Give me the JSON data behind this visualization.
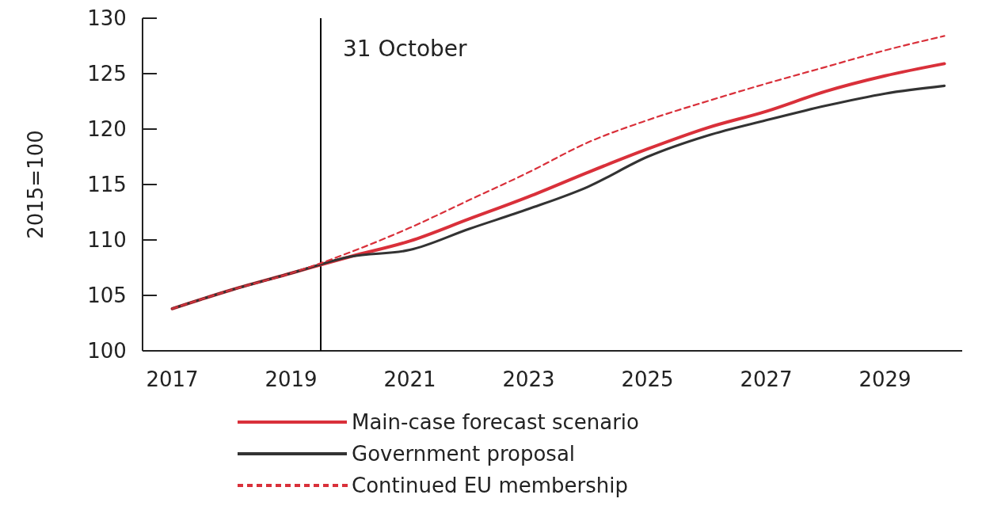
{
  "chart_data": {
    "type": "line",
    "ylabel": "2015=100",
    "x": [
      2017,
      2018,
      2019,
      2020,
      2021,
      2022,
      2023,
      2024,
      2025,
      2026,
      2027,
      2028,
      2029,
      2030
    ],
    "xlim": [
      2016.5,
      2030.3
    ],
    "xticks": [
      2017,
      2019,
      2021,
      2023,
      2025,
      2027,
      2029
    ],
    "ylim": [
      100,
      130
    ],
    "yticks": [
      100,
      105,
      110,
      115,
      120,
      125,
      130
    ],
    "series": [
      {
        "name": "Main-case forecast scenario",
        "color": "#d9303a",
        "line_style": "solid",
        "values": [
          103.8,
          105.5,
          107.0,
          108.5,
          109.9,
          111.9,
          113.9,
          116.1,
          118.2,
          120.1,
          121.6,
          123.4,
          124.8,
          125.9
        ]
      },
      {
        "name": "Government proposal",
        "color": "#333333",
        "line_style": "solid",
        "values": [
          103.8,
          105.5,
          107.0,
          108.5,
          109.1,
          111.0,
          112.8,
          114.8,
          117.5,
          119.4,
          120.8,
          122.1,
          123.2,
          123.9
        ]
      },
      {
        "name": "Continued EU membership",
        "color": "#d9303a",
        "line_style": "dashed",
        "values": [
          103.8,
          105.5,
          107.0,
          108.9,
          111.1,
          113.6,
          116.1,
          118.8,
          120.8,
          122.5,
          124.1,
          125.6,
          127.1,
          128.4
        ]
      }
    ],
    "ref_lines": [
      {
        "axis": "x",
        "value": 2019.5,
        "label": "31 October",
        "color": "#000000"
      }
    ],
    "legend": "bottom",
    "grid": false
  }
}
